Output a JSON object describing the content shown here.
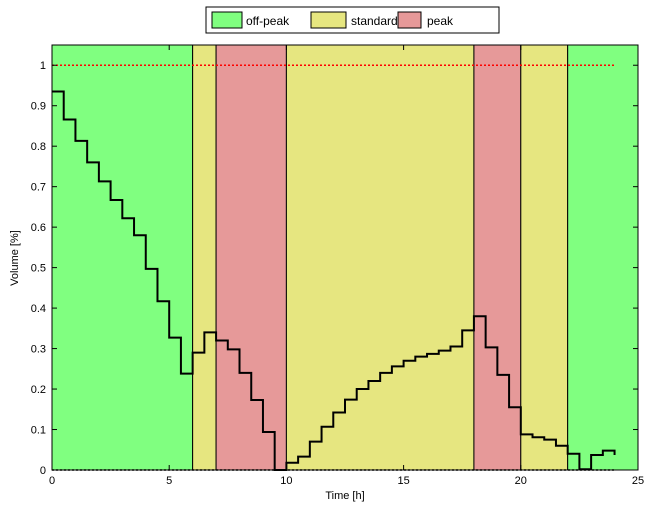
{
  "chart_data": {
    "type": "line",
    "xlabel": "Time [h]",
    "ylabel": "Volume [%]",
    "xlim": [
      0,
      25
    ],
    "ylim": [
      0,
      1.05
    ],
    "x_ticks": [
      0,
      5,
      10,
      15,
      20,
      25
    ],
    "y_ticks": [
      0,
      0.1,
      0.2,
      0.3,
      0.4,
      0.5,
      0.6,
      0.7,
      0.8,
      0.9,
      1
    ],
    "grid": false,
    "legend_position": "top-center",
    "legend": [
      {
        "name": "off-peak",
        "color": "#80ff80"
      },
      {
        "name": "standard",
        "color": "#e6e680"
      },
      {
        "name": "peak",
        "color": "#e69999"
      }
    ],
    "bands": [
      {
        "tariff": "off-peak",
        "start": 0,
        "end": 6
      },
      {
        "tariff": "standard",
        "start": 6,
        "end": 7
      },
      {
        "tariff": "peak",
        "start": 7,
        "end": 10
      },
      {
        "tariff": "standard",
        "start": 10,
        "end": 18
      },
      {
        "tariff": "peak",
        "start": 18,
        "end": 20
      },
      {
        "tariff": "standard",
        "start": 20,
        "end": 22
      },
      {
        "tariff": "off-peak",
        "start": 22,
        "end": 25
      }
    ],
    "reference_line": {
      "y": 1,
      "x_start": 0,
      "x_end": 24,
      "color": "#ff0000",
      "style": "dotted"
    },
    "series": [
      {
        "type": "step",
        "color": "#000000",
        "x": [
          0,
          0.5,
          1,
          1.5,
          2,
          2.5,
          3,
          3.5,
          4,
          4.5,
          5,
          5.5,
          6,
          6.5,
          7,
          7.5,
          8,
          8.5,
          9,
          9.5,
          10,
          10.5,
          11,
          11.5,
          12,
          12.5,
          13,
          13.5,
          14,
          14.5,
          15,
          15.5,
          16,
          16.5,
          17,
          17.5,
          18,
          18.5,
          19,
          19.5,
          20,
          20.5,
          21,
          21.5,
          22,
          22.5,
          23,
          23.5,
          24
        ],
        "values": [
          0.935,
          0.866,
          0.813,
          0.76,
          0.713,
          0.667,
          0.622,
          0.58,
          0.497,
          0.417,
          0.327,
          0.238,
          0.29,
          0.34,
          0.32,
          0.298,
          0.24,
          0.173,
          0.094,
          0.0,
          0.018,
          0.033,
          0.07,
          0.107,
          0.142,
          0.174,
          0.2,
          0.22,
          0.24,
          0.256,
          0.27,
          0.28,
          0.287,
          0.295,
          0.305,
          0.345,
          0.38,
          0.303,
          0.235,
          0.155,
          0.088,
          0.081,
          0.075,
          0.06,
          0.04,
          0.002,
          0.037,
          0.048,
          0.037
        ]
      }
    ]
  }
}
